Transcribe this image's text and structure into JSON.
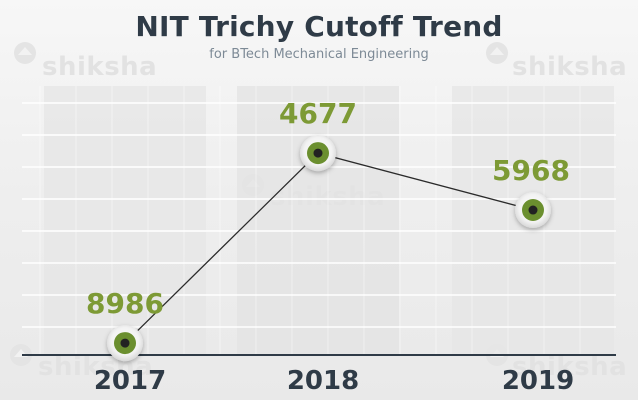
{
  "chart_data": {
    "type": "line",
    "title": "NIT Trichy Cutoff Trend",
    "subtitle": "for BTech Mechanical Engineering",
    "categories": [
      "2017",
      "2018",
      "2019"
    ],
    "values": [
      8986,
      4677,
      5968
    ],
    "y_axis": "reversed",
    "ylim": [
      10000,
      3500
    ],
    "grid": true,
    "colors": {
      "line": "#2b2b2b",
      "marker_ring": "#6b8f2f",
      "marker_center": "#222222",
      "value_label": "#7d9a35",
      "category_label": "#2f3b47",
      "baseline": "#2f3b47"
    }
  },
  "watermark": {
    "text": "shiksha"
  }
}
